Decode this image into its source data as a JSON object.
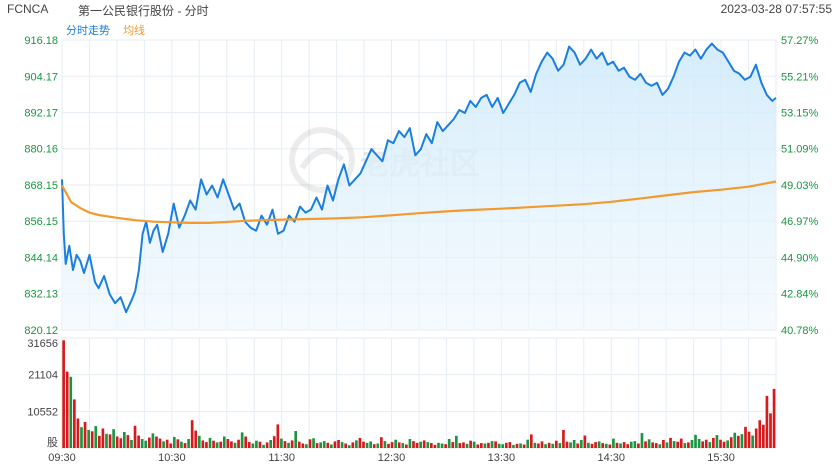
{
  "header": {
    "ticker": "FCNCA",
    "name": "第一公民银行股份 - 分时",
    "timestamp": "2023-03-28 07:57:55"
  },
  "legend": {
    "price_label": "分时走势",
    "avg_label": "均线"
  },
  "colors": {
    "price_line": "#1a7fe0",
    "avg_line": "#f29a2f",
    "grid": "#e6eef3",
    "axis_green": "#1a9641",
    "up_bar": "#d7191c",
    "down_bar": "#1a9641",
    "label": "#444444"
  },
  "watermark": {
    "text": "老虎社区"
  },
  "chart_data": [
    {
      "type": "line",
      "title": "",
      "y_ticks": [
        "916.18",
        "904.17",
        "892.17",
        "880.16",
        "868.15",
        "856.15",
        "844.14",
        "832.13",
        "820.12"
      ],
      "y_tick_values": [
        916.18,
        904.17,
        892.17,
        880.16,
        868.15,
        856.15,
        844.14,
        832.13,
        820.12
      ],
      "pct_ticks": [
        "57.27%",
        "55.21%",
        "53.15%",
        "51.09%",
        "49.03%",
        "46.97%",
        "44.90%",
        "42.84%",
        "40.78%"
      ],
      "ylim": [
        820.12,
        916.18
      ],
      "xlim": [
        "09:30",
        "16:00"
      ],
      "x_ticks": [
        "09:30",
        "10:30",
        "11:30",
        "12:30",
        "13:30",
        "14:30",
        "15:30"
      ],
      "grid": true,
      "series": [
        {
          "name": "分时走势",
          "x": [
            "09:30",
            "09:31",
            "09:32",
            "09:34",
            "09:36",
            "09:38",
            "09:40",
            "09:42",
            "09:45",
            "09:48",
            "09:50",
            "09:53",
            "09:56",
            "09:59",
            "10:02",
            "10:05",
            "10:08",
            "10:10",
            "10:12",
            "10:14",
            "10:16",
            "10:18",
            "10:20",
            "10:22",
            "10:25",
            "10:28",
            "10:31",
            "10:34",
            "10:37",
            "10:40",
            "10:43",
            "10:46",
            "10:49",
            "10:52",
            "10:55",
            "10:58",
            "11:01",
            "11:04",
            "11:07",
            "11:10",
            "11:13",
            "11:16",
            "11:19",
            "11:22",
            "11:25",
            "11:28",
            "11:31",
            "11:34",
            "11:37",
            "11:40",
            "11:43",
            "11:46",
            "11:49",
            "11:52",
            "11:55",
            "11:58",
            "12:01",
            "12:04",
            "12:07",
            "12:10",
            "12:13",
            "12:16",
            "12:19",
            "12:22",
            "12:25",
            "12:28",
            "12:31",
            "12:34",
            "12:37",
            "12:40",
            "12:43",
            "12:46",
            "12:49",
            "12:52",
            "12:55",
            "12:58",
            "13:01",
            "13:04",
            "13:07",
            "13:10",
            "13:13",
            "13:16",
            "13:19",
            "13:22",
            "13:25",
            "13:28",
            "13:31",
            "13:34",
            "13:37",
            "13:40",
            "13:43",
            "13:46",
            "13:49",
            "13:52",
            "13:55",
            "13:58",
            "14:01",
            "14:04",
            "14:07",
            "14:10",
            "14:13",
            "14:16",
            "14:19",
            "14:22",
            "14:25",
            "14:28",
            "14:31",
            "14:34",
            "14:37",
            "14:40",
            "14:43",
            "14:46",
            "14:49",
            "14:52",
            "14:55",
            "14:58",
            "15:01",
            "15:04",
            "15:07",
            "15:10",
            "15:13",
            "15:16",
            "15:19",
            "15:22",
            "15:25",
            "15:28",
            "15:31",
            "15:34",
            "15:37",
            "15:40",
            "15:43",
            "15:46",
            "15:49",
            "15:52",
            "15:55",
            "15:58",
            "16:00"
          ],
          "values": [
            870,
            852,
            842,
            848,
            840,
            845,
            843,
            839,
            845,
            836,
            834,
            838,
            832,
            829,
            831,
            826,
            830,
            833,
            840,
            852,
            856,
            849,
            853,
            855,
            846,
            852,
            862,
            854,
            858,
            863,
            860,
            870,
            865,
            868,
            864,
            870,
            865,
            860,
            862,
            856,
            854,
            853,
            858,
            855,
            860,
            852,
            853,
            858,
            856,
            861,
            859,
            860,
            864,
            860,
            868,
            863,
            870,
            875,
            868,
            870,
            872,
            876,
            880,
            878,
            876,
            883,
            882,
            886,
            884,
            887,
            878,
            880,
            885,
            882,
            889,
            886,
            888,
            890,
            893,
            892,
            896,
            894,
            897,
            898,
            894,
            897,
            892,
            895,
            898,
            902,
            903,
            899,
            905,
            909,
            912,
            910,
            906,
            908,
            914,
            912,
            908,
            910,
            913,
            910,
            912,
            908,
            909,
            906,
            907,
            904,
            903,
            905,
            902,
            901,
            902,
            898,
            900,
            904,
            909,
            912,
            911,
            913,
            910,
            913,
            915,
            913,
            912,
            909,
            906,
            905,
            903,
            904,
            908,
            902,
            898,
            896,
            897
          ]
        },
        {
          "name": "均线",
          "x": [
            "09:30",
            "09:35",
            "09:40",
            "09:45",
            "09:50",
            "10:00",
            "10:10",
            "10:20",
            "10:30",
            "10:40",
            "10:50",
            "11:00",
            "11:10",
            "11:20",
            "11:30",
            "11:45",
            "12:00",
            "12:15",
            "12:30",
            "12:45",
            "13:00",
            "13:15",
            "13:30",
            "13:45",
            "14:00",
            "14:15",
            "14:30",
            "14:45",
            "15:00",
            "15:15",
            "15:30",
            "15:45",
            "16:00"
          ],
          "values": [
            868,
            862.5,
            860.5,
            859,
            858.2,
            857.3,
            856.5,
            856,
            855.8,
            855.6,
            855.6,
            855.9,
            856.3,
            856.5,
            856.7,
            856.9,
            857.1,
            857.5,
            858.1,
            858.8,
            859.4,
            859.9,
            860.3,
            860.8,
            861.3,
            861.8,
            862.6,
            863.6,
            864.7,
            865.8,
            866.6,
            867.6,
            869.3
          ]
        }
      ]
    },
    {
      "type": "bar",
      "title": "",
      "y_ticks": [
        "31656",
        "21104",
        "10552",
        "股"
      ],
      "y_tick_values": [
        31656,
        21104,
        10552,
        0
      ],
      "ylim": [
        0,
        31656
      ],
      "bar_count": 200,
      "series": [
        {
          "name": "volume",
          "values": [
            31000,
            22000,
            20500,
            14000,
            8500,
            6000,
            7500,
            5200,
            4800,
            6300,
            3500,
            5600,
            4100,
            3900,
            5400,
            3300,
            2800,
            4600,
            3700,
            2300,
            6400,
            3600,
            2600,
            2100,
            3000,
            4200,
            3300,
            2700,
            1900,
            2400,
            1300,
            3200,
            2500,
            1800,
            1400,
            2600,
            8000,
            5000,
            3500,
            2200,
            1700,
            2900,
            2100,
            1600,
            1800,
            3300,
            2600,
            1900,
            1500,
            2400,
            4500,
            3300,
            1700,
            1300,
            2100,
            1800,
            900,
            1600,
            2300,
            3400,
            6800,
            2700,
            2000,
            1500,
            2200,
            4900,
            1800,
            1300,
            1100,
            2500,
            2800,
            1400,
            1600,
            2000,
            1500,
            1000,
            1900,
            2300,
            1700,
            1300,
            800,
            1600,
            2200,
            2900,
            1800,
            1500,
            1900,
            1100,
            1300,
            3100,
            2000,
            1200,
            1700,
            2400,
            1600,
            1400,
            1000,
            2600,
            2000,
            1500,
            1800,
            2200,
            1700,
            1400,
            900,
            1500,
            1300,
            1100,
            2600,
            1700,
            3500,
            1400,
            1600,
            1200,
            2100,
            1800,
            1000,
            1400,
            1300,
            1500,
            2000,
            1900,
            1200,
            1100,
            1500,
            1700,
            900,
            1200,
            1300,
            1000,
            2400,
            3900,
            1500,
            1300,
            1900,
            1100,
            1500,
            1200,
            2100,
            1400,
            5200,
            1800,
            1600,
            2300,
            1300,
            2300,
            3600,
            1500,
            1200,
            1700,
            1900,
            1400,
            1200,
            1000,
            2700,
            1500,
            1300,
            1700,
            1100,
            1800,
            2000,
            1300,
            4300,
            1900,
            2500,
            1600,
            1400,
            1100,
            2300,
            1600,
            2900,
            2000,
            1800,
            2700,
            1400,
            1600,
            2300,
            3800,
            2600,
            1900,
            2400,
            1700,
            2900,
            3700,
            2400,
            1800,
            2200,
            3100,
            4400,
            3500,
            4000,
            6100,
            4700,
            3600,
            5600,
            8000,
            6700,
            15000,
            10000,
            17000
          ],
          "directions": "urgrrgrgrgrrgrgrrgrgrrggrgrrgrrgrgrgrrgrrgrgrgrrgrgrrggrgrgrrgrgrgrrgrgrggrgrrgrgrgrrggrgrgrrgrgrgrrgrgrrggrgrgrrgrgrrgrgrggrrgrgrgrgrrgrgrgrrggrgrgrrgrgrgrgrrggrgrgrrgrgrgrrgrgggrrgrgrrgrgrgrrgr"
        }
      ],
      "x_ticks": [
        "09:30",
        "10:30",
        "11:30",
        "12:30",
        "13:30",
        "14:30",
        "15:30"
      ]
    }
  ]
}
